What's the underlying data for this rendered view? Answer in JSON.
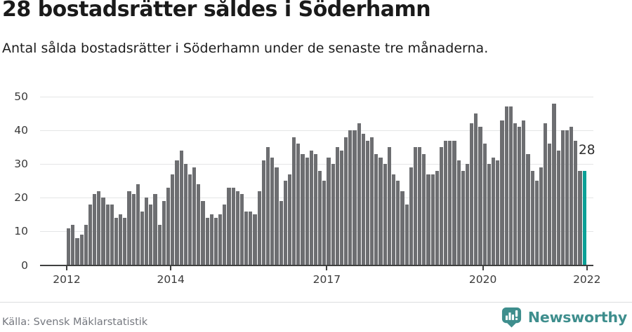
{
  "header": {
    "title": "28 bostadsrätter såldes i Söderhamn",
    "subtitle": "Antal sålda bostadsrätter i Söderhamn under de senaste tre månaderna."
  },
  "annotation": {
    "value": "28"
  },
  "footer": {
    "source": "Källa: Svensk Mäklarstatistik",
    "brand": "Newsworthy"
  },
  "colors": {
    "bar": "#6d6e71",
    "highlight": "#0ba096",
    "brand_teal": "#3e8e8d",
    "axis": "#3f4040",
    "grid": "#e4e5e6"
  },
  "chart_data": {
    "type": "bar",
    "title": "Antal sålda bostadsrätter per månad i Söderhamn",
    "x_start": "2012-01",
    "x_end": "2021-12",
    "ylim": [
      0,
      50
    ],
    "grid": "horizontal",
    "legend": "none",
    "y_ticks": [
      0,
      10,
      20,
      30,
      40,
      50
    ],
    "x_ticks": [
      {
        "label": "2012",
        "month_index": 0
      },
      {
        "label": "2014",
        "month_index": 24
      },
      {
        "label": "2017",
        "month_index": 60
      },
      {
        "label": "2020",
        "month_index": 96
      },
      {
        "label": "2022",
        "month_index": 120
      }
    ],
    "values": [
      11,
      12,
      8,
      9,
      12,
      18,
      21,
      22,
      20,
      18,
      18,
      14,
      15,
      14,
      22,
      21,
      24,
      16,
      20,
      18,
      21,
      12,
      19,
      23,
      27,
      31,
      34,
      30,
      27,
      29,
      24,
      19,
      14,
      15,
      14,
      15,
      18,
      23,
      23,
      22,
      21,
      16,
      16,
      15,
      22,
      31,
      35,
      32,
      29,
      19,
      25,
      27,
      38,
      36,
      33,
      32,
      34,
      33,
      28,
      25,
      32,
      30,
      35,
      34,
      38,
      40,
      40,
      42,
      39,
      37,
      38,
      33,
      32,
      30,
      35,
      27,
      25,
      22,
      18,
      29,
      35,
      35,
      33,
      27,
      27,
      28,
      35,
      37,
      37,
      37,
      31,
      28,
      30,
      42,
      45,
      41,
      36,
      30,
      32,
      31,
      43,
      47,
      47,
      42,
      41,
      43,
      33,
      28,
      25,
      29,
      42,
      36,
      48,
      34,
      40,
      40,
      41,
      37,
      28,
      28
    ],
    "highlight_index": 119,
    "highlight_value": 28
  }
}
